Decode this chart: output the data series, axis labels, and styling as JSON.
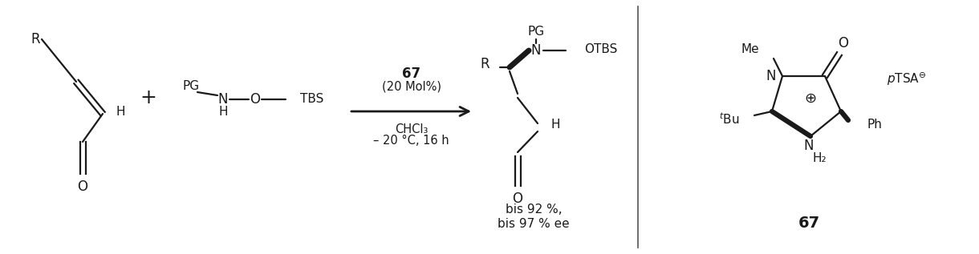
{
  "bg_color": "#ffffff",
  "line_color": "#1a1a1a",
  "fig_width": 12.2,
  "fig_height": 3.17,
  "dpi": 100,
  "arrow_above_text": "67",
  "arrow_above_sub": "(20 Mol%)",
  "arrow_below1": "CHCl₃",
  "arrow_below2": "– 20 °C, 16 h",
  "result_text1": "bis 92 %,",
  "result_text2": "bis 97 % ee",
  "compound_label": "67"
}
